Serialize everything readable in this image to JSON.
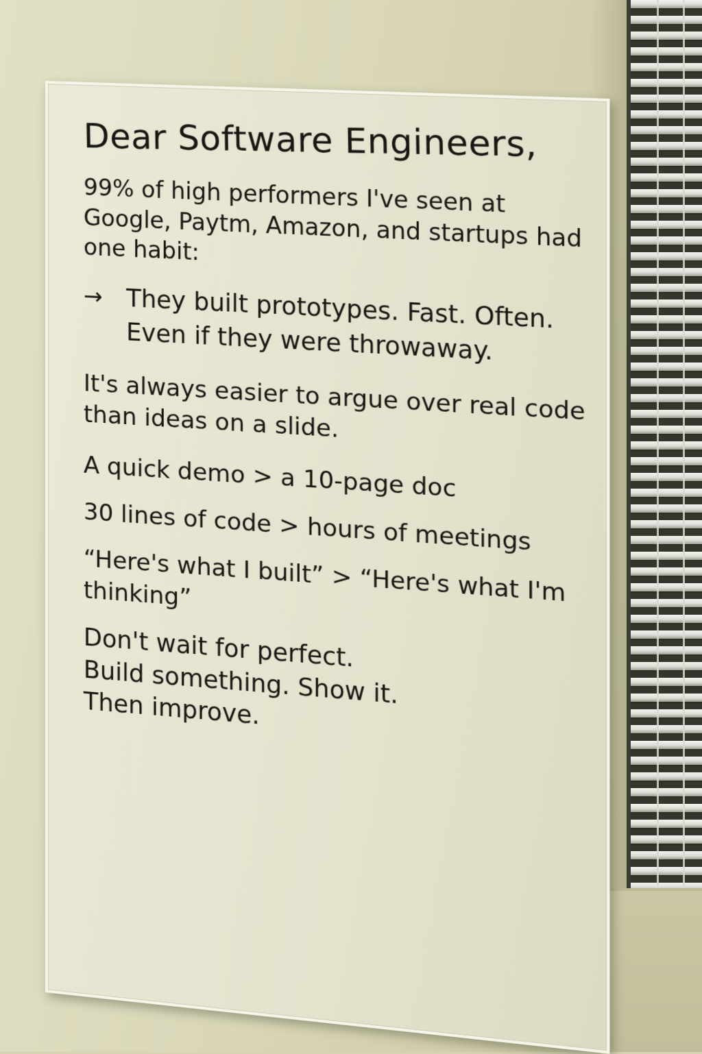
{
  "sign": {
    "title": "Dear Software Engineers,",
    "intro": "99% of high performers I've seen at Google, Paytm, Amazon, and startups had one habit:",
    "bullet_arrow": "→",
    "bullet_text": "They built prototypes. Fast. Often. Even if they were throwaway.",
    "argue": "It's always easier to argue over real code than ideas on a slide.",
    "comparisons": [
      "A quick demo > a 10-page doc",
      "30 lines of code > hours of meetings",
      "“Here's what I built” > “Here's what I'm thinking”"
    ],
    "closing": [
      "Don't wait for perfect.",
      "Build something. Show it.",
      "Then improve."
    ]
  }
}
